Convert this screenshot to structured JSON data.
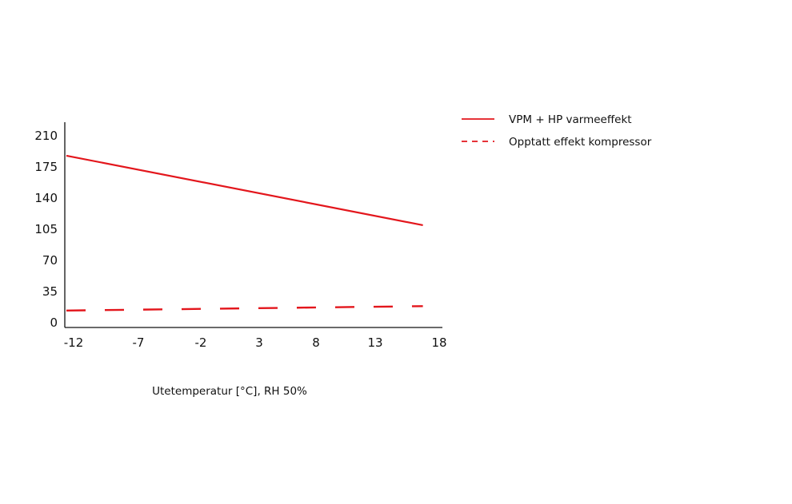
{
  "chart_data": {
    "type": "line",
    "title": "",
    "xlabel": "Utetemperatur [°C], RH 50%",
    "ylabel": "",
    "x_ticks": [
      "-12",
      "-7",
      "-2",
      "3",
      "8",
      "13",
      "18"
    ],
    "x_range": [
      -12,
      18
    ],
    "y_ticks": [
      "0",
      "35",
      "70",
      "105",
      "140",
      "175",
      "210"
    ],
    "ylim": [
      0,
      233
    ],
    "grid": false,
    "legend_position": "right",
    "series": [
      {
        "name": "VPM + HP varmeeffekt",
        "style": "solid",
        "color": "#e3161c",
        "points": [
          [
            -12,
            193
          ],
          [
            17,
            115
          ]
        ]
      },
      {
        "name": "Opptatt effekt kompressor",
        "style": "dashed",
        "color": "#e3161c",
        "points": [
          [
            -12,
            19
          ],
          [
            17,
            24
          ]
        ]
      }
    ]
  }
}
